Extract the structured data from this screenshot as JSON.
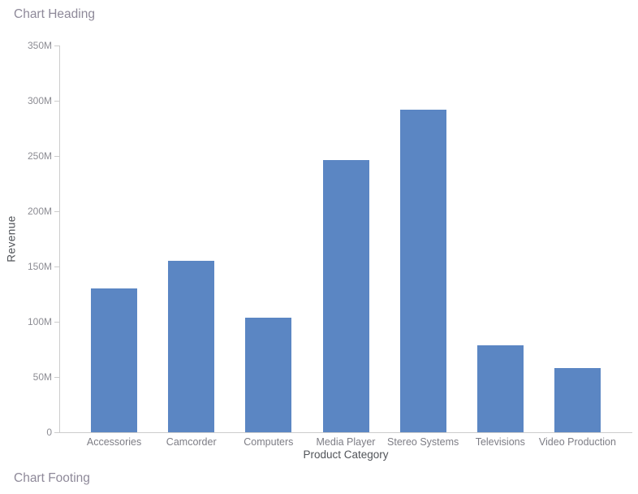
{
  "chart": {
    "heading": "Chart Heading",
    "footing": "Chart Footing"
  },
  "chart_data": {
    "type": "bar",
    "title": "Chart Heading",
    "footer": "Chart Footing",
    "categories": [
      "Accessories",
      "Camcorder",
      "Computers",
      "Media Player",
      "Stereo Systems",
      "Televisions",
      "Video Production"
    ],
    "values": [
      130,
      155,
      104,
      246,
      292,
      79,
      58
    ],
    "value_unit": "M",
    "xlabel": "Product Category",
    "ylabel": "Revenue",
    "ylim": [
      0,
      350
    ],
    "ytick_step": 50,
    "ytick_labels": [
      "0",
      "50M",
      "100M",
      "150M",
      "200M",
      "250M",
      "300M",
      "350M"
    ],
    "grid": false,
    "legend": "none",
    "bar_color": "#5b86c3"
  },
  "colors": {
    "bar": "#5b86c3",
    "axis_line": "#cccccc",
    "tick_label": "#8c8c93",
    "category_label": "#7d7d85",
    "axis_title": "#515459",
    "heading_text": "#8e8999",
    "background": "#ffffff"
  }
}
